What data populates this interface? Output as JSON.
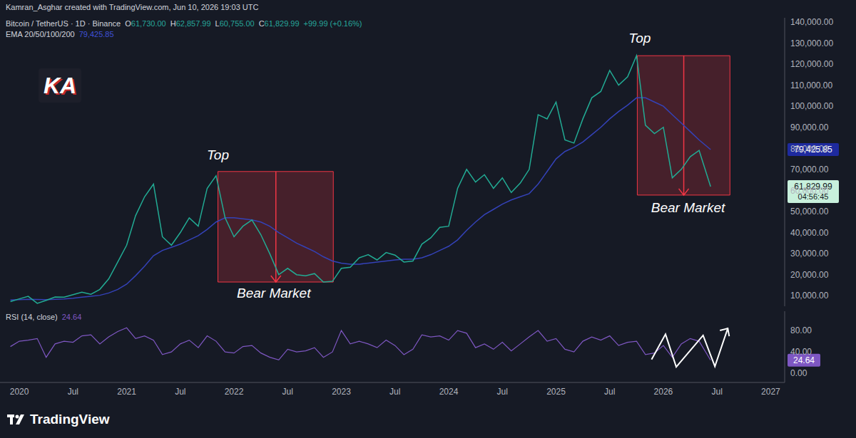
{
  "credit": "Kamran_Asghar created with TradingView.com, Jun 10, 2026 19:03 UTC",
  "logo_text": "KA",
  "watermark": "TradingView",
  "chart_data": [
    {
      "type": "line",
      "ohlc": [
        {
          "label": "O",
          "text": "61,730.00"
        },
        {
          "label": "H",
          "text": "62,857.99"
        },
        {
          "label": "L",
          "text": "60,755.00"
        },
        {
          "label": "C",
          "text": "61,829.99"
        }
      ],
      "change": "+99.99 (+0.16%)",
      "countdown": "04:56:45",
      "x": [
        2019.917,
        2020.0,
        2020.083,
        2020.167,
        2020.25,
        2020.333,
        2020.417,
        2020.5,
        2020.583,
        2020.667,
        2020.75,
        2020.833,
        2020.917,
        2021.0,
        2021.083,
        2021.167,
        2021.25,
        2021.333,
        2021.417,
        2021.5,
        2021.583,
        2021.667,
        2021.75,
        2021.833,
        2021.917,
        2022.0,
        2022.083,
        2022.167,
        2022.25,
        2022.333,
        2022.417,
        2022.5,
        2022.583,
        2022.667,
        2022.75,
        2022.833,
        2022.917,
        2023.0,
        2023.083,
        2023.167,
        2023.25,
        2023.333,
        2023.417,
        2023.5,
        2023.583,
        2023.667,
        2023.75,
        2023.833,
        2023.917,
        2024.0,
        2024.083,
        2024.167,
        2024.25,
        2024.333,
        2024.417,
        2024.5,
        2024.583,
        2024.667,
        2024.75,
        2024.833,
        2024.917,
        2025.0,
        2025.083,
        2025.167,
        2025.25,
        2025.333,
        2025.417,
        2025.5,
        2025.583,
        2025.667,
        2025.75,
        2025.833,
        2025.917,
        2026.0,
        2026.083,
        2026.167,
        2026.25,
        2026.333,
        2026.44
      ],
      "series": [
        {
          "name": "Bitcoin / TetherUS · 1D · Binance",
          "color": "#22ab94",
          "values": [
            7200,
            8500,
            9700,
            6400,
            7800,
            9400,
            9300,
            10500,
            11700,
            10700,
            13000,
            18000,
            26000,
            34000,
            48000,
            57000,
            63000,
            38000,
            34000,
            40000,
            47000,
            43000,
            61000,
            67000,
            47000,
            38000,
            43000,
            46000,
            39000,
            30000,
            20000,
            23000,
            20000,
            19500,
            20500,
            16500,
            16800,
            23000,
            23500,
            28000,
            29500,
            27000,
            30500,
            29300,
            26000,
            26500,
            34500,
            37500,
            42500,
            43000,
            61000,
            70000,
            64000,
            67500,
            61000,
            66000,
            59000,
            63500,
            70000,
            96000,
            94000,
            102000,
            84000,
            82500,
            94000,
            104000,
            107000,
            117000,
            110000,
            114000,
            124000,
            91000,
            87000,
            90000,
            66000,
            70000,
            76000,
            79000,
            61829.99
          ]
        },
        {
          "name": "EMA 20/50/100/200",
          "color": "#3442b8",
          "values": [
            8000,
            8100,
            8300,
            8200,
            8100,
            8300,
            8500,
            8800,
            9300,
            9700,
            10200,
            11300,
            13000,
            15500,
            19500,
            24000,
            29000,
            31500,
            33000,
            34500,
            36500,
            38500,
            41500,
            45000,
            47000,
            47000,
            46500,
            46000,
            45000,
            43000,
            40000,
            37500,
            35000,
            33000,
            31000,
            28500,
            26500,
            25500,
            25000,
            25000,
            25500,
            26000,
            26500,
            27000,
            27300,
            27300,
            28000,
            29500,
            31500,
            33500,
            36500,
            41000,
            45000,
            48500,
            51000,
            53500,
            55500,
            57000,
            58500,
            63000,
            69000,
            75000,
            78500,
            80500,
            83000,
            86500,
            90000,
            94000,
            97500,
            100500,
            104000,
            104000,
            102000,
            100000,
            96000,
            92000,
            88000,
            84000,
            79425.85
          ]
        }
      ],
      "xlim": [
        2019.82,
        2027.13
      ],
      "ylim": [
        5000,
        142000
      ],
      "yticks": [
        {
          "value": 10000,
          "label": "10,000.00"
        },
        {
          "value": 20000,
          "label": "20,000.00"
        },
        {
          "value": 30000,
          "label": "30,000.00"
        },
        {
          "value": 40000,
          "label": "40,000.00"
        },
        {
          "value": 50000,
          "label": "50,000.00"
        },
        {
          "value": 60000,
          "label": "60,000.00"
        },
        {
          "value": 70000,
          "label": "70,000.00"
        },
        {
          "value": 80000,
          "label": "80,000.00"
        },
        {
          "value": 90000,
          "label": "90,000.00"
        },
        {
          "value": 100000,
          "label": "100,000.00"
        },
        {
          "value": 110000,
          "label": "110,000.00"
        },
        {
          "value": 120000,
          "label": "120,000.00"
        },
        {
          "value": 130000,
          "label": "130,000.00"
        },
        {
          "value": 140000,
          "label": "140,000.00"
        }
      ],
      "tick_labels": "y",
      "grid": false,
      "boxes": [
        {
          "x1": 2021.85,
          "x2": 2022.925,
          "y1": 16500,
          "y2": 69000,
          "arrow_x": 2022.39,
          "color": "#f23645"
        },
        {
          "x1": 2025.757,
          "x2": 2026.62,
          "y1": 57800,
          "y2": 124000,
          "arrow_x": 2026.19,
          "color": "#f23645"
        }
      ],
      "annotations": [
        {
          "text": "Top",
          "x": 2021.85,
          "y": 76400
        },
        {
          "text": "Bear Market",
          "x": 2022.37,
          "y": 10740
        },
        {
          "text": "Top",
          "x": 2025.78,
          "y": 131850
        },
        {
          "text": "Bear Market",
          "x": 2026.23,
          "y": 51340
        }
      ]
    },
    {
      "type": "line",
      "x": [
        2019.917,
        2020.0,
        2020.083,
        2020.167,
        2020.25,
        2020.333,
        2020.417,
        2020.5,
        2020.583,
        2020.667,
        2020.75,
        2020.833,
        2020.917,
        2021.0,
        2021.083,
        2021.167,
        2021.25,
        2021.333,
        2021.417,
        2021.5,
        2021.583,
        2021.667,
        2021.75,
        2021.833,
        2021.917,
        2022.0,
        2022.083,
        2022.167,
        2022.25,
        2022.333,
        2022.417,
        2022.5,
        2022.583,
        2022.667,
        2022.75,
        2022.833,
        2022.917,
        2023.0,
        2023.083,
        2023.167,
        2023.25,
        2023.333,
        2023.417,
        2023.5,
        2023.583,
        2023.667,
        2023.75,
        2023.833,
        2023.917,
        2024.0,
        2024.083,
        2024.167,
        2024.25,
        2024.333,
        2024.417,
        2024.5,
        2024.583,
        2024.667,
        2024.75,
        2024.833,
        2024.917,
        2025.0,
        2025.083,
        2025.167,
        2025.25,
        2025.333,
        2025.417,
        2025.5,
        2025.583,
        2025.667,
        2025.75,
        2025.833,
        2025.917,
        2026.0,
        2026.083,
        2026.167,
        2026.25,
        2026.333,
        2026.44
      ],
      "series": [
        {
          "name": "RSI (14, close)",
          "color": "#7e57c2",
          "values": [
            50,
            60,
            62,
            65,
            30,
            55,
            60,
            58,
            70,
            72,
            55,
            68,
            78,
            85,
            65,
            70,
            62,
            35,
            40,
            55,
            62,
            48,
            70,
            60,
            40,
            38,
            50,
            52,
            38,
            30,
            25,
            45,
            40,
            42,
            48,
            30,
            40,
            80,
            55,
            60,
            55,
            48,
            62,
            52,
            35,
            45,
            72,
            68,
            70,
            62,
            80,
            75,
            48,
            55,
            45,
            58,
            42,
            55,
            68,
            80,
            60,
            65,
            45,
            40,
            60,
            68,
            62,
            70,
            52,
            58,
            60,
            35,
            38,
            52,
            30,
            55,
            65,
            60,
            24.64
          ]
        }
      ],
      "xlim": [
        2019.82,
        2027.13
      ],
      "xticks": [
        2020,
        {
          "value": 2020.5,
          "label": "Jul"
        },
        2021,
        {
          "value": 2021.5,
          "label": "Jul"
        },
        2022,
        {
          "value": 2022.5,
          "label": "Jul"
        },
        2023,
        {
          "value": 2023.5,
          "label": "Jul"
        },
        2024,
        {
          "value": 2024.5,
          "label": "Jul"
        },
        2025,
        {
          "value": 2025.5,
          "label": "Jul"
        },
        2026,
        {
          "value": 2026.5,
          "label": "Jul"
        },
        2027
      ],
      "ylim": [
        -17,
        116
      ],
      "yticks": [
        {
          "value": 0,
          "label": "0.00"
        },
        {
          "value": 40,
          "label": "40.00"
        },
        {
          "value": 80,
          "label": "80.00"
        }
      ],
      "grid": false,
      "drawing": {
        "color": "#ffffff",
        "x": [
          2025.89,
          2026.02,
          2026.12,
          2026.37,
          2026.48,
          2026.6
        ],
        "values": [
          26,
          73,
          12,
          71,
          13,
          84
        ]
      }
    }
  ]
}
